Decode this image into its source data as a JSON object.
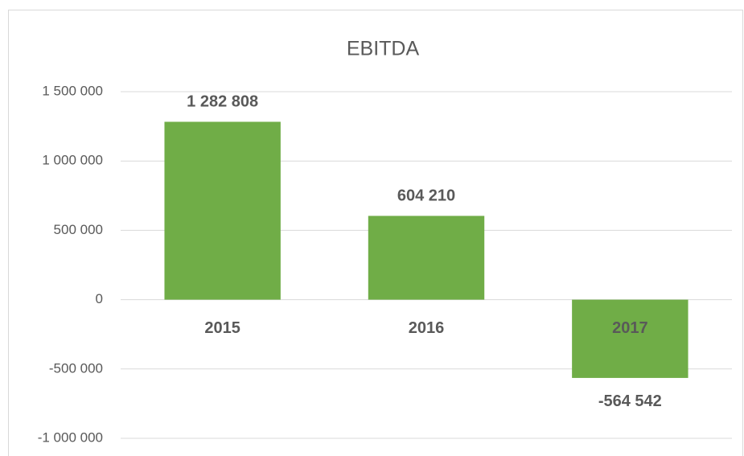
{
  "chart_data": {
    "type": "bar",
    "title": "EBITDA",
    "categories": [
      "2015",
      "2016",
      "2017"
    ],
    "values": [
      1282808,
      604210,
      -564542
    ],
    "value_labels": [
      "1 282 808",
      "604 210",
      "-564 542"
    ],
    "color": "#70ad47",
    "ylim": [
      -1000000,
      1500000
    ],
    "yticks": [
      {
        "value": -1000000,
        "label": "-1 000 000"
      },
      {
        "value": -500000,
        "label": "-500 000"
      },
      0,
      {
        "value": 500000,
        "label": "500 000"
      },
      {
        "value": 1000000,
        "label": "1 000 000"
      },
      {
        "value": 1500000,
        "label": "1 500 000"
      }
    ],
    "grid": true
  }
}
